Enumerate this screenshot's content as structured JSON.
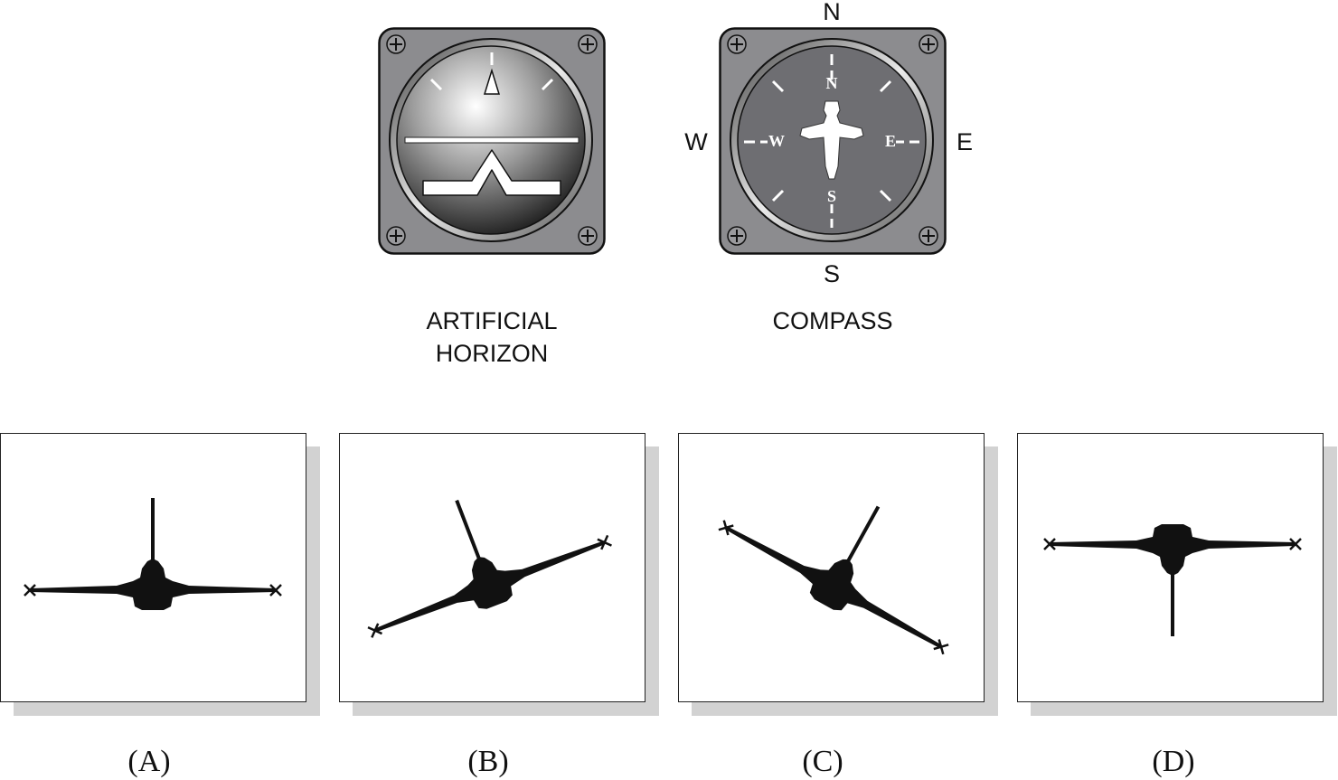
{
  "instruments": {
    "artificial_horizon": {
      "caption_line1": "ARTIFICIAL",
      "caption_line2": "HORIZON"
    },
    "compass": {
      "caption": "COMPASS",
      "outer_labels": {
        "n": "N",
        "s": "S",
        "w": "W",
        "e": "E"
      },
      "dial_labels": {
        "n": "N",
        "s": "S",
        "w": "W",
        "e": "E"
      }
    }
  },
  "options": [
    {
      "label": "(A)",
      "icon": "aircraft-wings-level-icon"
    },
    {
      "label": "(B)",
      "icon": "aircraft-banked-icon"
    },
    {
      "label": "(C)",
      "icon": "aircraft-banked-other-way-icon"
    },
    {
      "label": "(D)",
      "icon": "aircraft-inverted-icon"
    }
  ],
  "colors": {
    "bezel": "#8c8c8f",
    "dial": "#6e6e72",
    "silhouette": "#111111",
    "shadow": "#d2d2d2"
  }
}
